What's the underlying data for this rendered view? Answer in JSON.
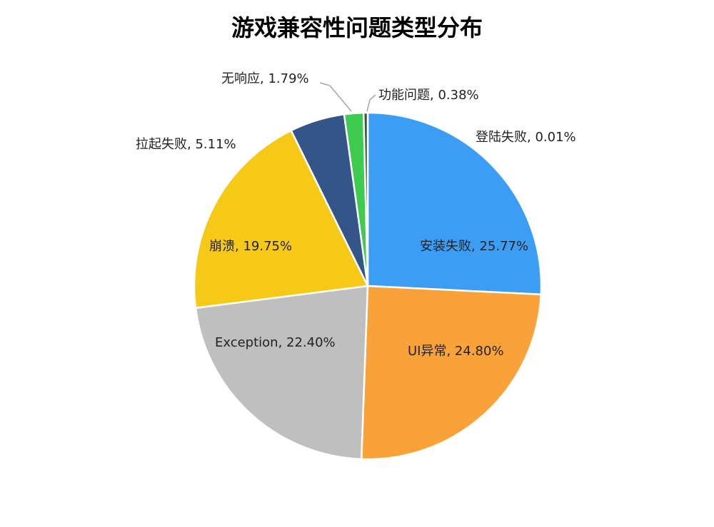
{
  "chart_data": {
    "type": "pie",
    "title": "游戏兼容性问题类型分布",
    "slices": [
      {
        "name": "登陆失败",
        "value": 0.01,
        "label": "登陆失败, 0.01%",
        "color": "#2f3f5c"
      },
      {
        "name": "安装失败",
        "value": 25.77,
        "label": "安装失败, 25.77%",
        "color": "#3c9df5"
      },
      {
        "name": "UI异常",
        "value": 24.8,
        "label": "UI异常, 24.80%",
        "color": "#f9a23a"
      },
      {
        "name": "Exception",
        "value": 22.4,
        "label": "Exception, 22.40%",
        "color": "#bfbfbf"
      },
      {
        "name": "崩溃",
        "value": 19.75,
        "label": "崩溃, 19.75%",
        "color": "#f6c917"
      },
      {
        "name": "拉起失败",
        "value": 5.11,
        "label": "拉起失败, 5.11%",
        "color": "#345587"
      },
      {
        "name": "无响应",
        "value": 1.79,
        "label": "无响应, 1.79%",
        "color": "#3ecb4f"
      },
      {
        "name": "功能问题",
        "value": 0.38,
        "label": "功能问题, 0.38%",
        "color": "#2d5b3c"
      }
    ]
  }
}
